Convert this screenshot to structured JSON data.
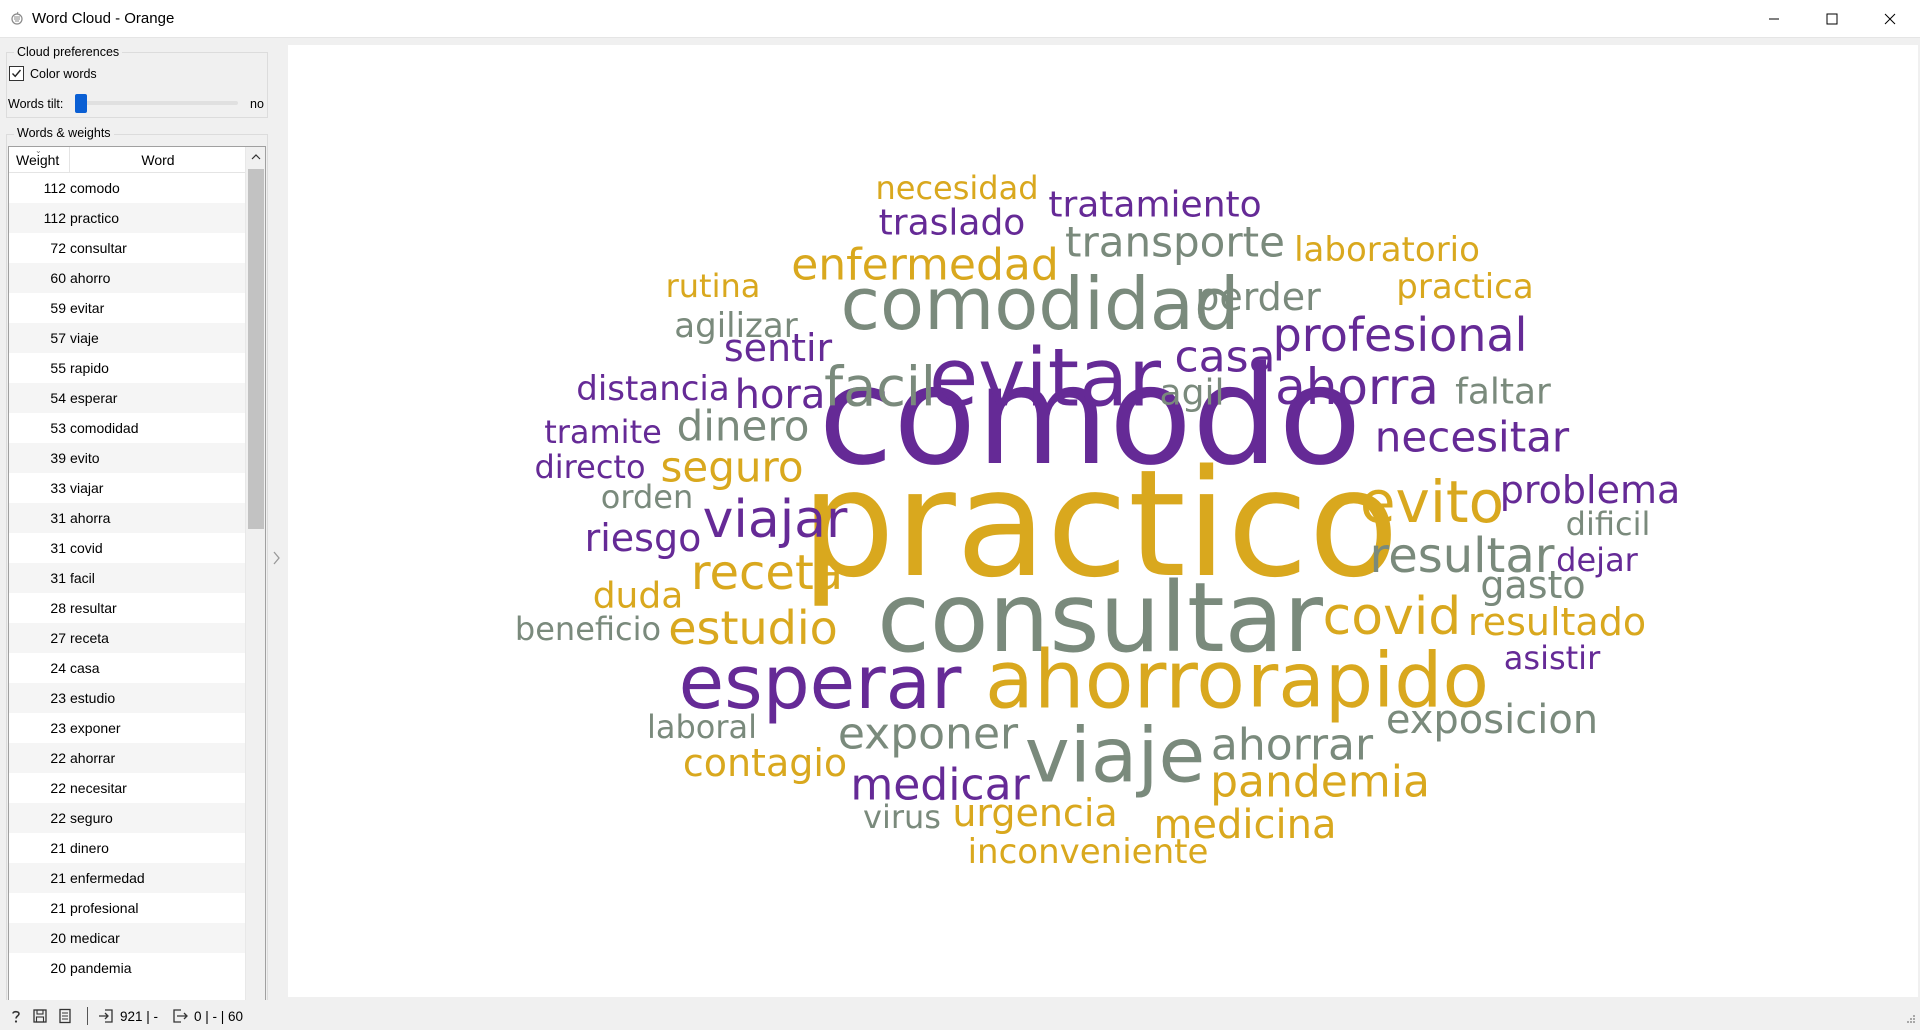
{
  "window": {
    "title": "Word Cloud - Orange"
  },
  "cloud_preferences": {
    "title": "Cloud preferences",
    "color_words_label": "Color words",
    "color_words_checked": true,
    "words_tilt_label": "Words tilt:",
    "words_tilt_value": "no"
  },
  "words_weights": {
    "title": "Words & weights",
    "headers": {
      "weight": "Weight",
      "word": "Word"
    },
    "rows": [
      {
        "weight": "112",
        "word": "comodo"
      },
      {
        "weight": "112",
        "word": "practico"
      },
      {
        "weight": "72",
        "word": "consultar"
      },
      {
        "weight": "60",
        "word": "ahorro"
      },
      {
        "weight": "59",
        "word": "evitar"
      },
      {
        "weight": "57",
        "word": "viaje"
      },
      {
        "weight": "55",
        "word": "rapido"
      },
      {
        "weight": "54",
        "word": "esperar"
      },
      {
        "weight": "53",
        "word": "comodidad"
      },
      {
        "weight": "39",
        "word": "evito"
      },
      {
        "weight": "33",
        "word": "viajar"
      },
      {
        "weight": "31",
        "word": "ahorra"
      },
      {
        "weight": "31",
        "word": "covid"
      },
      {
        "weight": "31",
        "word": "facil"
      },
      {
        "weight": "28",
        "word": "resultar"
      },
      {
        "weight": "27",
        "word": "receta"
      },
      {
        "weight": "24",
        "word": "casa"
      },
      {
        "weight": "23",
        "word": "estudio"
      },
      {
        "weight": "23",
        "word": "exponer"
      },
      {
        "weight": "22",
        "word": "ahorrar"
      },
      {
        "weight": "22",
        "word": "necesitar"
      },
      {
        "weight": "22",
        "word": "seguro"
      },
      {
        "weight": "21",
        "word": "dinero"
      },
      {
        "weight": "21",
        "word": "enfermedad"
      },
      {
        "weight": "21",
        "word": "profesional"
      },
      {
        "weight": "20",
        "word": "medicar"
      },
      {
        "weight": "20",
        "word": "pandemia"
      }
    ]
  },
  "colors": {
    "purple": "#652a96",
    "gold": "#d9a81e",
    "gray": "#7a8a7c",
    "slider": "#0a5fd4"
  },
  "cloud_words": [
    {
      "text": "comodo",
      "color": "purple",
      "size": 112
    },
    {
      "text": "practico",
      "color": "gold",
      "size": 112
    },
    {
      "text": "consultar",
      "color": "gray",
      "size": 72
    },
    {
      "text": "ahorro",
      "color": "gold",
      "size": 60
    },
    {
      "text": "evitar",
      "color": "purple",
      "size": 59
    },
    {
      "text": "viaje",
      "color": "gray",
      "size": 57
    },
    {
      "text": "rapido",
      "color": "gold",
      "size": 55
    },
    {
      "text": "esperar",
      "color": "purple",
      "size": 54
    },
    {
      "text": "comodidad",
      "color": "gray",
      "size": 53
    },
    {
      "text": "evito",
      "color": "gold",
      "size": 39
    },
    {
      "text": "viajar",
      "color": "purple",
      "size": 33
    },
    {
      "text": "ahorra",
      "color": "purple",
      "size": 31
    },
    {
      "text": "covid",
      "color": "gold",
      "size": 31
    },
    {
      "text": "facil",
      "color": "gray",
      "size": 31
    },
    {
      "text": "resultar",
      "color": "gray",
      "size": 28
    },
    {
      "text": "receta",
      "color": "gold",
      "size": 27
    },
    {
      "text": "casa",
      "color": "purple",
      "size": 24
    },
    {
      "text": "estudio",
      "color": "gold",
      "size": 23
    },
    {
      "text": "exponer",
      "color": "gray",
      "size": 23
    },
    {
      "text": "ahorrar",
      "color": "gray",
      "size": 22
    },
    {
      "text": "necesitar",
      "color": "purple",
      "size": 22
    },
    {
      "text": "seguro",
      "color": "gold",
      "size": 22
    },
    {
      "text": "dinero",
      "color": "gray",
      "size": 21
    },
    {
      "text": "enfermedad",
      "color": "gold",
      "size": 21
    },
    {
      "text": "profesional",
      "color": "purple",
      "size": 21
    },
    {
      "text": "medicar",
      "color": "purple",
      "size": 20
    },
    {
      "text": "pandemia",
      "color": "gold",
      "size": 20
    },
    {
      "text": "transporte",
      "color": "gray",
      "size": 18
    },
    {
      "text": "hora",
      "color": "purple",
      "size": 18
    },
    {
      "text": "medicina",
      "color": "gold",
      "size": 17
    },
    {
      "text": "urgencia",
      "color": "gold",
      "size": 17
    },
    {
      "text": "problema",
      "color": "purple",
      "size": 17
    },
    {
      "text": "exposicion",
      "color": "gray",
      "size": 17
    },
    {
      "text": "resultado",
      "color": "gold",
      "size": 17
    },
    {
      "text": "contagio",
      "color": "gold",
      "size": 16
    },
    {
      "text": "riesgo",
      "color": "purple",
      "size": 16
    },
    {
      "text": "duda",
      "color": "gold",
      "size": 16
    },
    {
      "text": "gasto",
      "color": "gray",
      "size": 16
    },
    {
      "text": "perder",
      "color": "gray",
      "size": 16
    },
    {
      "text": "sentir",
      "color": "purple",
      "size": 16
    },
    {
      "text": "tratamiento",
      "color": "purple",
      "size": 15
    },
    {
      "text": "traslado",
      "color": "purple",
      "size": 15
    },
    {
      "text": "practica",
      "color": "gold",
      "size": 15
    },
    {
      "text": "inconveniente",
      "color": "gold",
      "size": 15
    },
    {
      "text": "laboratorio",
      "color": "gold",
      "size": 15
    },
    {
      "text": "distancia",
      "color": "purple",
      "size": 15
    },
    {
      "text": "faltar",
      "color": "gray",
      "size": 15
    },
    {
      "text": "agil",
      "color": "gray",
      "size": 15
    },
    {
      "text": "agilizar",
      "color": "gray",
      "size": 15
    },
    {
      "text": "orden",
      "color": "gray",
      "size": 15
    },
    {
      "text": "tramite",
      "color": "purple",
      "size": 15
    },
    {
      "text": "directo",
      "color": "purple",
      "size": 14
    },
    {
      "text": "dificil",
      "color": "gray",
      "size": 14
    },
    {
      "text": "dejar",
      "color": "purple",
      "size": 14
    },
    {
      "text": "asistir",
      "color": "purple",
      "size": 14
    },
    {
      "text": "beneficio",
      "color": "gray",
      "size": 14
    },
    {
      "text": "laboral",
      "color": "gray",
      "size": 14
    },
    {
      "text": "virus",
      "color": "gray",
      "size": 14
    },
    {
      "text": "necesidad",
      "color": "gold",
      "size": 14
    },
    {
      "text": "rutina",
      "color": "gold",
      "size": 14
    }
  ],
  "status": {
    "input_count": "921 | -",
    "output_count": "0 | - | 60"
  }
}
